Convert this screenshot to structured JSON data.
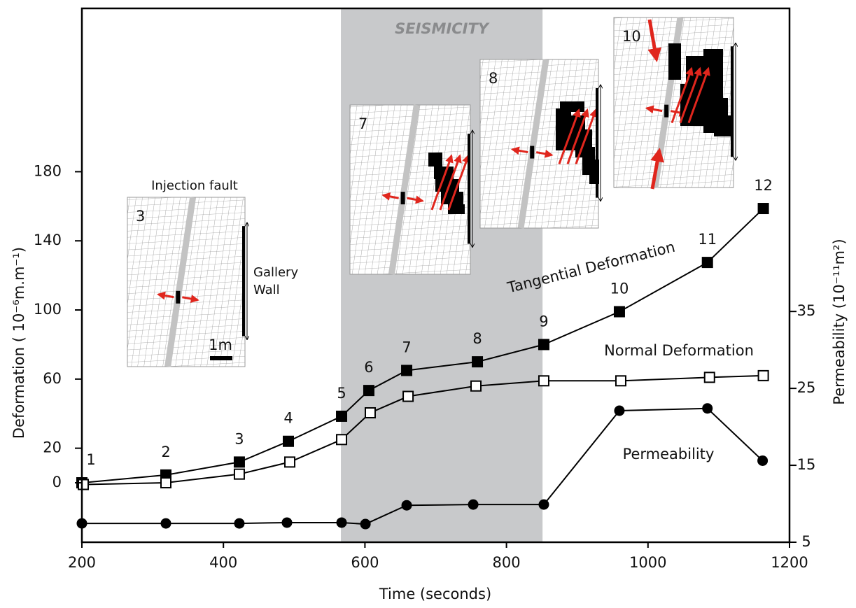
{
  "chart_data": {
    "type": "line",
    "x_label": "Time (seconds)",
    "y_label": "Deformation ( 10⁻⁶m.m⁻¹)",
    "y2_label": "Permeability (10⁻¹¹m²)",
    "xlim": [
      200,
      1200
    ],
    "xticks": [
      200,
      400,
      600,
      800,
      1000,
      1200
    ],
    "ylim": [
      -34.4,
      274.5
    ],
    "yticks": [
      0,
      20,
      60,
      100,
      140,
      180
    ],
    "y2lim": [
      5,
      74.4
    ],
    "y2ticks": [
      5,
      15,
      25,
      35
    ],
    "shade": {
      "x0": 566,
      "x1": 851,
      "label": "SEISMICITY",
      "color": "#c8c9cb"
    },
    "series": [
      {
        "name": "Tangential Deformation",
        "marker": "filled-square",
        "color": "#000000",
        "x": [
          200,
          318.7,
          422.5,
          491.8,
          567,
          605.5,
          659,
          758.9,
          852.8,
          959.6,
          1084,
          1163
        ],
        "values": [
          0,
          4.5,
          12,
          24,
          38.5,
          53.4,
          65,
          70,
          80,
          99,
          127.5,
          158.7
        ],
        "point_labels": [
          "1",
          "2",
          "3",
          "4",
          "5",
          "6",
          "7",
          "8",
          "9",
          "10",
          "11",
          "12"
        ]
      },
      {
        "name": "Normal Deformation",
        "marker": "open-square",
        "color": "#000000",
        "x": [
          202,
          318.7,
          422.5,
          493.8,
          567,
          607.5,
          661,
          756.9,
          852.8,
          961.6,
          1087,
          1163
        ],
        "values": [
          -1,
          0,
          5,
          12,
          25,
          40.5,
          50,
          56,
          59,
          59,
          61,
          62
        ]
      },
      {
        "name": "Permeability",
        "marker": "circle",
        "color": "#000000",
        "axis": "y2",
        "x": [
          200,
          318.7,
          422.5,
          489.8,
          567,
          600.7,
          659,
          753,
          852.8,
          959.6,
          1084,
          1162
        ],
        "values": [
          7.45,
          7.45,
          7.45,
          7.55,
          7.55,
          7.36,
          9.8,
          9.9,
          9.9,
          22.1,
          22.4,
          15.6
        ]
      }
    ],
    "annotations": [
      "Injection fault",
      "Gallery",
      "Wall",
      "1m"
    ],
    "insets": [
      "3",
      "7",
      "8",
      "10"
    ]
  }
}
